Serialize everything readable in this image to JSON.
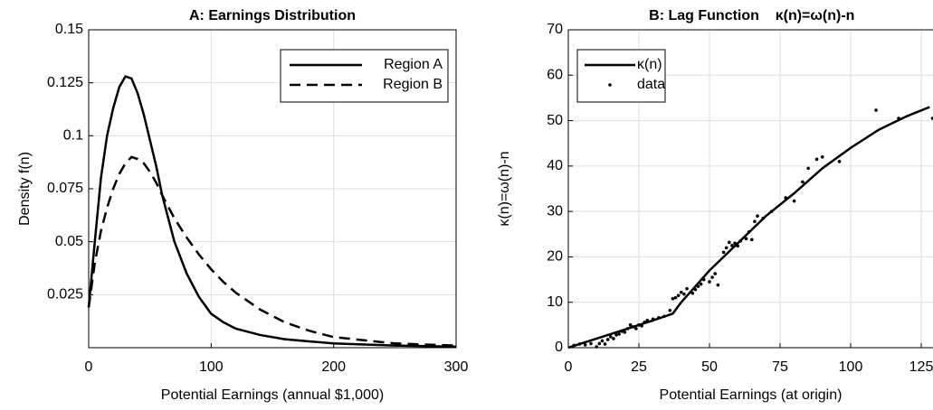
{
  "chart_data": [
    {
      "type": "line",
      "title": "A: Earnings Distribution",
      "xlabel": "Potential Earnings (annual $1,000)",
      "ylabel": "Density f(n)",
      "x": [
        0,
        5,
        10,
        15,
        20,
        25,
        30,
        35,
        40,
        45,
        50,
        55,
        60,
        70,
        80,
        90,
        100,
        110,
        120,
        140,
        160,
        180,
        200,
        250,
        300
      ],
      "series": [
        {
          "name": "Region A",
          "color": "#000000",
          "dash": "solid",
          "values": [
            0.019,
            0.05,
            0.08,
            0.1,
            0.113,
            0.123,
            0.128,
            0.127,
            0.12,
            0.11,
            0.098,
            0.086,
            0.072,
            0.05,
            0.035,
            0.024,
            0.016,
            0.012,
            0.009,
            0.006,
            0.004,
            0.003,
            0.002,
            0.001,
            0.0005
          ]
        },
        {
          "name": "Region B",
          "color": "#000000",
          "dash": "dashed",
          "values": [
            0.019,
            0.04,
            0.055,
            0.066,
            0.075,
            0.082,
            0.087,
            0.09,
            0.089,
            0.087,
            0.083,
            0.078,
            0.072,
            0.061,
            0.052,
            0.044,
            0.037,
            0.031,
            0.026,
            0.018,
            0.012,
            0.008,
            0.005,
            0.002,
            0.001
          ]
        }
      ],
      "xlim": [
        0,
        300
      ],
      "xticks": [
        0,
        100,
        200,
        300
      ],
      "ylim": [
        0,
        0.15
      ],
      "yticks": [
        0.025,
        0.05,
        0.075,
        0.1,
        0.125,
        0.15
      ],
      "grid": true,
      "legend": "upper right"
    },
    {
      "type": "scatter",
      "title": "B: Lag Function    κ(n)=ω(n)-n",
      "xlabel": "Potential Earnings (at origin)",
      "ylabel": "κ(n)=ω(n)-n",
      "series": [
        {
          "name": "κ(n)",
          "type": "line",
          "color": "#000000",
          "x": [
            0,
            10,
            20,
            30,
            37,
            40,
            50,
            60,
            70,
            80,
            90,
            100,
            110,
            120,
            128
          ],
          "values": [
            0,
            2,
            4,
            6,
            7.5,
            10,
            17,
            23,
            29,
            34,
            39.5,
            44,
            48,
            51,
            53
          ]
        },
        {
          "name": "data",
          "type": "scatter",
          "color": "#000000",
          "x": [
            2,
            4,
            6,
            8,
            10,
            11,
            12,
            13,
            14,
            15,
            16,
            17,
            18,
            19,
            20,
            21,
            22,
            23,
            24,
            25,
            26,
            27,
            28,
            30,
            32,
            34,
            36,
            37,
            38,
            39,
            40,
            41,
            42,
            44,
            45,
            46,
            47,
            48,
            50,
            51,
            52,
            53,
            55,
            56,
            57,
            58,
            59,
            60,
            61,
            63,
            64,
            65,
            66,
            67,
            69,
            72,
            77,
            80,
            83,
            85,
            88,
            90,
            96,
            109,
            117,
            129
          ],
          "values": [
            0.5,
            0.8,
            0.6,
            0.9,
            0.2,
            0.9,
            1.5,
            0.8,
            1.8,
            2.4,
            2,
            2.8,
            3,
            3.6,
            3.4,
            4.2,
            5,
            4.6,
            4.2,
            5,
            4.8,
            5.6,
            6,
            6.3,
            6.6,
            6.9,
            8.2,
            10.8,
            11,
            11.5,
            12.2,
            11.8,
            13,
            12,
            12.8,
            13.5,
            14,
            15,
            14.5,
            15.5,
            16.3,
            13.8,
            21,
            22,
            23.2,
            22.5,
            23,
            22.4,
            23.5,
            24,
            25.5,
            23.8,
            27.8,
            29,
            28.5,
            30,
            33,
            32.3,
            36.5,
            39.5,
            41.5,
            42,
            41,
            52.3,
            50.5,
            50.5
          ]
        }
      ],
      "xlim": [
        0,
        130
      ],
      "xticks": [
        0,
        25,
        50,
        75,
        100,
        125
      ],
      "ylim": [
        0,
        70
      ],
      "yticks": [
        0,
        10,
        20,
        30,
        40,
        50,
        60,
        70
      ],
      "grid": true,
      "legend": "upper left"
    }
  ]
}
